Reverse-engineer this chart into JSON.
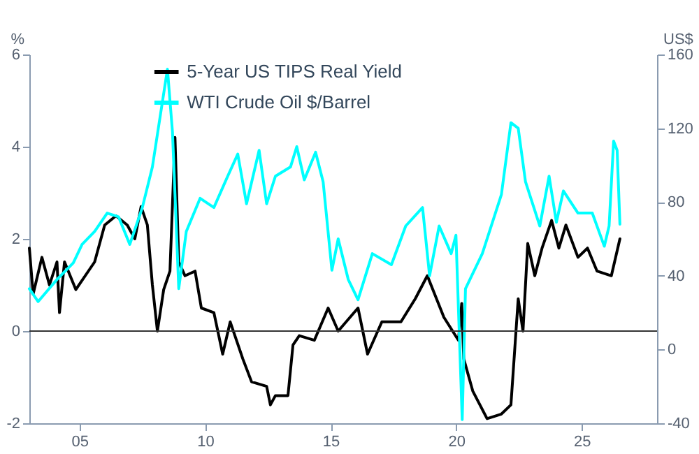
{
  "chart_data": {
    "type": "line",
    "ylabel": "%",
    "y2label": "US$",
    "legend": "top",
    "grid": false,
    "xlim": [
      2003,
      2028
    ],
    "xticks": [
      {
        "value": 2005,
        "label": "05"
      },
      {
        "value": 2010,
        "label": "10"
      },
      {
        "value": 2015,
        "label": "15"
      },
      {
        "value": 2020,
        "label": "20"
      },
      {
        "value": 2025,
        "label": "25"
      }
    ],
    "ylim": [
      -2,
      6
    ],
    "yticks": [
      -2,
      0,
      2,
      4,
      6
    ],
    "y2lim": [
      -40,
      160
    ],
    "y2ticks": [
      -40,
      0,
      40,
      80,
      120,
      160
    ],
    "ref_lines": [
      {
        "axis": "y",
        "value": 0,
        "color": "#333333"
      }
    ],
    "series": [
      {
        "name": "5-Year US TIPS Real Yield",
        "color": "#000000",
        "x": [
          2003.0,
          2003.15,
          2003.5,
          2003.8,
          2004.1,
          2004.2,
          2004.4,
          2004.85,
          2005.6,
          2006.0,
          2006.45,
          2006.9,
          2007.2,
          2007.45,
          2007.7,
          2007.9,
          2008.1,
          2008.35,
          2008.6,
          2008.8,
          2008.95,
          2009.2,
          2009.6,
          2009.85,
          2010.35,
          2010.7,
          2011.0,
          2011.5,
          2011.85,
          2012.45,
          2012.6,
          2012.8,
          2013.3,
          2013.5,
          2013.75,
          2014.35,
          2014.9,
          2015.3,
          2016.09,
          2016.47,
          2017.04,
          2017.8,
          2018.37,
          2018.85,
          2019.51,
          2020.09,
          2020.22,
          2020.3,
          2020.66,
          2021.23,
          2021.8,
          2022.18,
          2022.47,
          2022.66,
          2022.85,
          2023.13,
          2023.42,
          2023.8,
          2024.09,
          2024.37,
          2024.85,
          2025.23,
          2025.61,
          2026.18,
          2026.52
        ],
        "values": [
          1.8,
          0.8,
          1.6,
          1.0,
          1.5,
          0.4,
          1.5,
          0.9,
          1.5,
          2.3,
          2.5,
          2.3,
          2.0,
          2.7,
          2.3,
          1.0,
          0.0,
          0.9,
          1.3,
          4.2,
          1.5,
          1.2,
          1.3,
          0.5,
          0.4,
          -0.5,
          0.2,
          -0.6,
          -1.1,
          -1.2,
          -1.6,
          -1.4,
          -1.4,
          -0.3,
          -0.1,
          -0.2,
          0.5,
          0.0,
          0.5,
          -0.5,
          0.2,
          0.2,
          0.7,
          1.2,
          0.3,
          -0.2,
          0.6,
          -0.6,
          -1.3,
          -1.9,
          -1.8,
          -1.6,
          0.7,
          0.0,
          1.9,
          1.2,
          1.8,
          2.4,
          1.8,
          2.3,
          1.6,
          1.8,
          1.3,
          1.2,
          2.0
        ]
      },
      {
        "name": "WTI Crude Oil $/Barrel",
        "color": "#00ffff",
        "axis": "y2",
        "x": [
          2003.0,
          2003.35,
          2004.1,
          2004.75,
          2005.1,
          2005.6,
          2006.1,
          2006.55,
          2007.0,
          2007.5,
          2007.9,
          2008.25,
          2008.5,
          2008.7,
          2008.95,
          2009.25,
          2009.8,
          2010.35,
          2010.9,
          2011.3,
          2011.65,
          2012.15,
          2012.45,
          2012.8,
          2013.4,
          2013.65,
          2013.95,
          2014.4,
          2014.7,
          2015.05,
          2015.3,
          2015.7,
          2016.09,
          2016.66,
          2017.42,
          2017.99,
          2018.66,
          2018.94,
          2019.32,
          2019.8,
          2019.99,
          2020.24,
          2020.37,
          2021.04,
          2021.8,
          2022.18,
          2022.47,
          2022.76,
          2023.33,
          2023.7,
          2023.99,
          2024.27,
          2024.85,
          2025.42,
          2025.9,
          2026.09,
          2026.27,
          2026.41,
          2026.52
        ],
        "values": [
          33,
          26,
          38,
          47,
          57,
          64,
          74,
          72,
          57,
          77,
          99,
          130,
          152,
          118,
          33,
          64,
          82,
          77,
          94,
          106,
          79,
          108,
          79,
          94,
          99,
          110,
          92,
          107,
          91,
          43,
          60,
          38,
          27,
          52,
          46,
          67,
          77,
          40,
          67,
          52,
          62,
          -38,
          33,
          52,
          84,
          123,
          120,
          91,
          67,
          94,
          69,
          86,
          74,
          74,
          56,
          67,
          113,
          108,
          68
        ]
      }
    ]
  }
}
